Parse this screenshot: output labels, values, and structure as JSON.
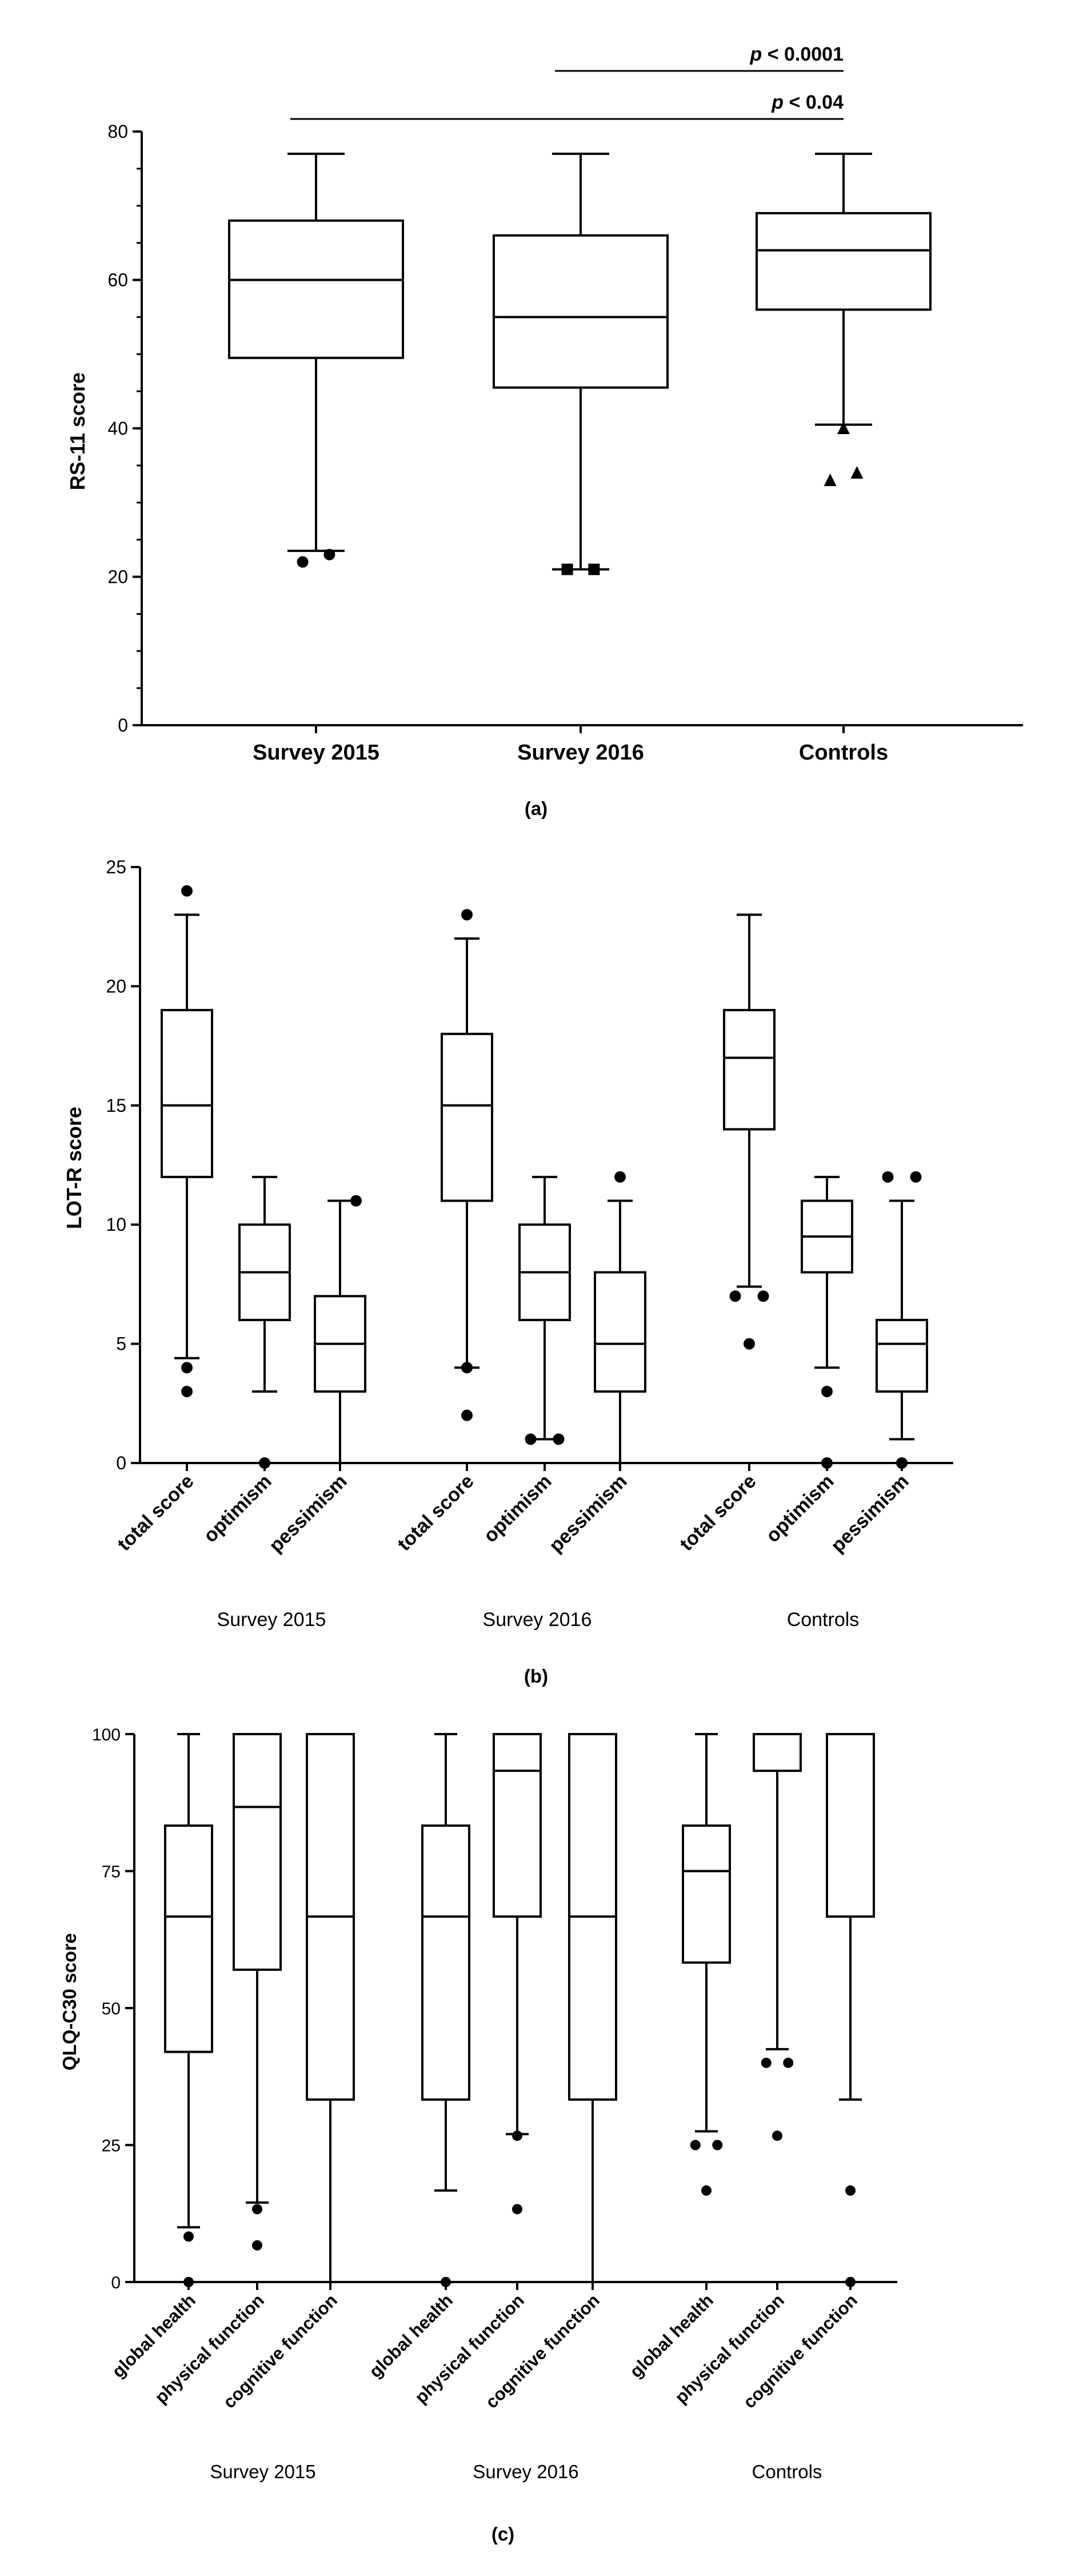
{
  "chart_data": [
    {
      "type": "box",
      "panel_label": "(a)",
      "ylabel": "RS-11 score",
      "ylim": [
        0,
        80
      ],
      "yticks": [
        0,
        20,
        40,
        60,
        80
      ],
      "categories": [
        "Survey 2015",
        "Survey 2016",
        "Controls"
      ],
      "boxes": [
        {
          "name": "Survey 2015",
          "min": 23.5,
          "q1": 49.5,
          "median": 60,
          "q3": 68,
          "max": 77,
          "outliers": [
            {
              "v": 22,
              "dx": -1.3,
              "shape": "circle"
            },
            {
              "v": 23,
              "dx": 1.3,
              "shape": "circle"
            }
          ]
        },
        {
          "name": "Survey 2016",
          "min": 21,
          "q1": 45.5,
          "median": 55,
          "q3": 66,
          "max": 77,
          "outliers": [
            {
              "v": 21,
              "dx": -1.3,
              "shape": "square"
            },
            {
              "v": 21,
              "dx": 1.3,
              "shape": "square"
            }
          ]
        },
        {
          "name": "Controls",
          "min": 40.5,
          "q1": 56,
          "median": 64,
          "q3": 69,
          "max": 77,
          "outliers": [
            {
              "v": 40,
              "dx": 0,
              "shape": "triangle"
            },
            {
              "v": 33,
              "dx": -1.3,
              "shape": "triangle"
            },
            {
              "v": 34,
              "dx": 1.3,
              "shape": "triangle"
            }
          ]
        }
      ],
      "significance": [
        {
          "prefix": "p",
          "text": " < 0.0001",
          "from": 1,
          "to": 2
        },
        {
          "prefix": "p",
          "text": " < 0.04",
          "from": 0,
          "to": 2
        }
      ]
    },
    {
      "type": "box",
      "panel_label": "(b)",
      "ylabel": "LOT-R score",
      "ylim": [
        0,
        25
      ],
      "yticks": [
        0,
        5,
        10,
        15,
        20,
        25
      ],
      "groups": [
        "Survey 2015",
        "Survey 2016",
        "Controls"
      ],
      "categories": [
        "total score",
        "optimism",
        "pessimism"
      ],
      "boxes": [
        {
          "group": "Survey 2015",
          "name": "total score",
          "min": 4.4,
          "q1": 12,
          "median": 15,
          "q3": 19,
          "max": 23,
          "outliers": [
            {
              "v": 24,
              "dx": 0
            },
            {
              "v": 4,
              "dx": 0
            },
            {
              "v": 3,
              "dx": 0
            }
          ]
        },
        {
          "group": "Survey 2015",
          "name": "optimism",
          "min": 3,
          "q1": 6,
          "median": 8,
          "q3": 10,
          "max": 12,
          "outliers": [
            {
              "v": 0,
              "dx": 0
            }
          ]
        },
        {
          "group": "Survey 2015",
          "name": "pessimism",
          "min": 0,
          "q1": 3,
          "median": 5,
          "q3": 7,
          "max": 11,
          "outliers": [
            {
              "v": 11,
              "dx": 0.4
            }
          ]
        },
        {
          "group": "Survey 2016",
          "name": "total score",
          "min": 4,
          "q1": 11,
          "median": 15,
          "q3": 18,
          "max": 22,
          "outliers": [
            {
              "v": 23,
              "dx": 0
            },
            {
              "v": 4,
              "dx": 0
            },
            {
              "v": 2,
              "dx": 0
            }
          ]
        },
        {
          "group": "Survey 2016",
          "name": "optimism",
          "min": 1,
          "q1": 6,
          "median": 8,
          "q3": 10,
          "max": 12,
          "outliers": [
            {
              "v": 1,
              "dx": -0.35
            },
            {
              "v": 1,
              "dx": 0.35
            }
          ]
        },
        {
          "group": "Survey 2016",
          "name": "pessimism",
          "min": 0,
          "q1": 3,
          "median": 5,
          "q3": 8,
          "max": 11,
          "outliers": [
            {
              "v": 12,
              "dx": 0
            }
          ]
        },
        {
          "group": "Controls",
          "name": "total score",
          "min": 7.4,
          "q1": 14,
          "median": 17,
          "q3": 19,
          "max": 23,
          "outliers": [
            {
              "v": 7,
              "dx": -0.35
            },
            {
              "v": 7,
              "dx": 0.35
            },
            {
              "v": 5,
              "dx": 0
            }
          ]
        },
        {
          "group": "Controls",
          "name": "optimism",
          "min": 4,
          "q1": 8,
          "median": 9.5,
          "q3": 11,
          "max": 12,
          "outliers": [
            {
              "v": 3,
              "dx": 0
            },
            {
              "v": 0,
              "dx": 0
            }
          ]
        },
        {
          "group": "Controls",
          "name": "pessimism",
          "min": 1,
          "q1": 3,
          "median": 5,
          "q3": 6,
          "max": 11,
          "outliers": [
            {
              "v": 12,
              "dx": -0.35
            },
            {
              "v": 12,
              "dx": 0.35
            },
            {
              "v": 0,
              "dx": 0
            }
          ]
        }
      ]
    },
    {
      "type": "box",
      "panel_label": "(c)",
      "ylabel": "QLQ-C30 score",
      "ylim": [
        0,
        100
      ],
      "yticks": [
        0,
        25,
        50,
        75,
        100
      ],
      "groups": [
        "Survey 2015",
        "Survey 2016",
        "Controls"
      ],
      "categories": [
        "global health",
        "physical function",
        "cognitive function"
      ],
      "boxes": [
        {
          "group": "Survey 2015",
          "name": "global health",
          "min": 10,
          "q1": 42,
          "median": 66.7,
          "q3": 83.3,
          "max": 100,
          "outliers": [
            {
              "v": 8.3,
              "dx": 0
            },
            {
              "v": 0,
              "dx": 0
            }
          ]
        },
        {
          "group": "Survey 2015",
          "name": "physical function",
          "min": 14.5,
          "q1": 57,
          "median": 86.7,
          "q3": 100,
          "max": 100,
          "outliers": [
            {
              "v": 13.3,
              "dx": 0
            },
            {
              "v": 6.7,
              "dx": 0
            }
          ]
        },
        {
          "group": "Survey 2015",
          "name": "cognitive function",
          "min": 0,
          "q1": 33.3,
          "median": 66.7,
          "q3": 100,
          "max": 100,
          "outliers": []
        },
        {
          "group": "Survey 2016",
          "name": "global health",
          "min": 16.7,
          "q1": 33.3,
          "median": 66.7,
          "q3": 83.3,
          "max": 100,
          "outliers": [
            {
              "v": 0,
              "dx": 0
            }
          ]
        },
        {
          "group": "Survey 2016",
          "name": "physical function",
          "min": 27,
          "q1": 66.7,
          "median": 93.3,
          "q3": 100,
          "max": 100,
          "outliers": [
            {
              "v": 26.7,
              "dx": 0
            },
            {
              "v": 13.3,
              "dx": 0
            }
          ]
        },
        {
          "group": "Survey 2016",
          "name": "cognitive function",
          "min": 0,
          "q1": 33.3,
          "median": 66.7,
          "q3": 100,
          "max": 100,
          "outliers": []
        },
        {
          "group": "Controls",
          "name": "global health",
          "min": 27.5,
          "q1": 58.3,
          "median": 75,
          "q3": 83.3,
          "max": 100,
          "outliers": [
            {
              "v": 25,
              "dx": -0.35
            },
            {
              "v": 25,
              "dx": 0.35
            },
            {
              "v": 16.7,
              "dx": 0
            }
          ]
        },
        {
          "group": "Controls",
          "name": "physical function",
          "min": 42.5,
          "q1": 93.3,
          "median": 100,
          "q3": 100,
          "max": 100,
          "outliers": [
            {
              "v": 40,
              "dx": -0.35
            },
            {
              "v": 40,
              "dx": 0.35
            },
            {
              "v": 26.7,
              "dx": 0
            }
          ]
        },
        {
          "group": "Controls",
          "name": "cognitive function",
          "min": 33.3,
          "q1": 66.7,
          "median": 100,
          "q3": 100,
          "max": 100,
          "outliers": [
            {
              "v": 16.7,
              "dx": 0
            },
            {
              "v": 0,
              "dx": 0
            }
          ]
        }
      ]
    }
  ]
}
